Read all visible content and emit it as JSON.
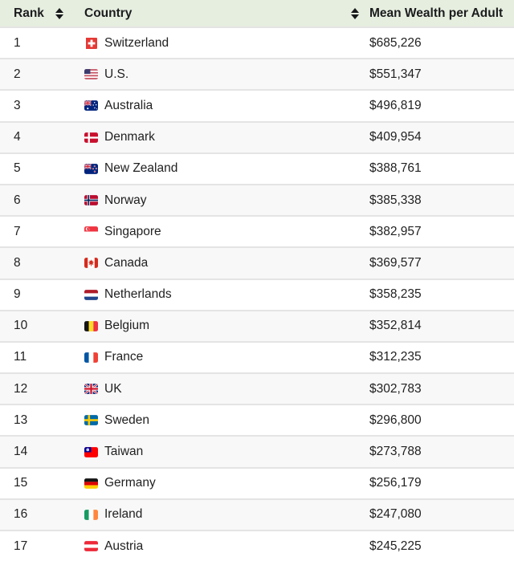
{
  "header": {
    "rank_label": "Rank",
    "country_label": "Country",
    "value_label": "Mean Wealth per Adult"
  },
  "colors": {
    "header_bg": "#e6eedf",
    "row_alt_bg": "#f8f8f8",
    "separator": "#e4e4e4",
    "text": "#212121"
  },
  "icons": {
    "sort": "sort-updown-icon"
  },
  "rows": [
    {
      "rank": "1",
      "country": "Switzerland",
      "flag": "ch",
      "value": "$685,226"
    },
    {
      "rank": "2",
      "country": "U.S.",
      "flag": "us",
      "value": "$551,347"
    },
    {
      "rank": "3",
      "country": "Australia",
      "flag": "au",
      "value": "$496,819"
    },
    {
      "rank": "4",
      "country": "Denmark",
      "flag": "dk",
      "value": "$409,954"
    },
    {
      "rank": "5",
      "country": "New Zealand",
      "flag": "nz",
      "value": "$388,761"
    },
    {
      "rank": "6",
      "country": "Norway",
      "flag": "no",
      "value": "$385,338"
    },
    {
      "rank": "7",
      "country": "Singapore",
      "flag": "sg",
      "value": "$382,957"
    },
    {
      "rank": "8",
      "country": "Canada",
      "flag": "ca",
      "value": "$369,577"
    },
    {
      "rank": "9",
      "country": "Netherlands",
      "flag": "nl",
      "value": "$358,235"
    },
    {
      "rank": "10",
      "country": "Belgium",
      "flag": "be",
      "value": "$352,814"
    },
    {
      "rank": "11",
      "country": "France",
      "flag": "fr",
      "value": "$312,235"
    },
    {
      "rank": "12",
      "country": "UK",
      "flag": "gb",
      "value": "$302,783"
    },
    {
      "rank": "13",
      "country": "Sweden",
      "flag": "se",
      "value": "$296,800"
    },
    {
      "rank": "14",
      "country": "Taiwan",
      "flag": "tw",
      "value": "$273,788"
    },
    {
      "rank": "15",
      "country": "Germany",
      "flag": "de",
      "value": "$256,179"
    },
    {
      "rank": "16",
      "country": "Ireland",
      "flag": "ie",
      "value": "$247,080"
    },
    {
      "rank": "17",
      "country": "Austria",
      "flag": "at",
      "value": "$245,225"
    }
  ],
  "chart_data": {
    "type": "table",
    "title": "Mean Wealth per Adult by Country",
    "columns": [
      "Rank",
      "Country",
      "Mean Wealth per Adult"
    ],
    "rows": [
      [
        1,
        "Switzerland",
        685226
      ],
      [
        2,
        "U.S.",
        551347
      ],
      [
        3,
        "Australia",
        496819
      ],
      [
        4,
        "Denmark",
        409954
      ],
      [
        5,
        "New Zealand",
        388761
      ],
      [
        6,
        "Norway",
        385338
      ],
      [
        7,
        "Singapore",
        382957
      ],
      [
        8,
        "Canada",
        369577
      ],
      [
        9,
        "Netherlands",
        358235
      ],
      [
        10,
        "Belgium",
        352814
      ],
      [
        11,
        "France",
        312235
      ],
      [
        12,
        "UK",
        302783
      ],
      [
        13,
        "Sweden",
        296800
      ],
      [
        14,
        "Taiwan",
        273788
      ],
      [
        15,
        "Germany",
        256179
      ],
      [
        16,
        "Ireland",
        247080
      ],
      [
        17,
        "Austria",
        245225
      ]
    ]
  }
}
